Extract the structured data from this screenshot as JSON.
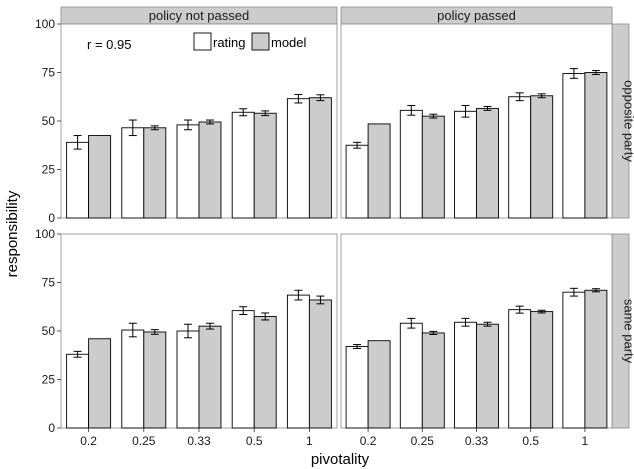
{
  "chart_data": {
    "type": "bar",
    "title": "",
    "xlabel": "pivotality",
    "ylabel": "responsibility",
    "ylim": [
      0,
      100
    ],
    "yticks": [
      "0",
      "25",
      "50",
      "75",
      "100"
    ],
    "categories": [
      "0.2",
      "0.25",
      "0.33",
      "0.5",
      "1"
    ],
    "column_facets": [
      "policy not passed",
      "policy passed"
    ],
    "row_facets": [
      "opposite party",
      "same party"
    ],
    "annotation": "r = 0.95",
    "legend": {
      "position": "top",
      "entries": [
        {
          "name": "rating",
          "color": "#ffffff"
        },
        {
          "name": "model",
          "color": "#cccccc"
        }
      ]
    },
    "grid": false,
    "panels": [
      {
        "column": "policy not passed",
        "row": "opposite party",
        "series": [
          {
            "name": "rating",
            "values": [
              39,
              46.5,
              48,
              54.5,
              61.5
            ],
            "error": [
              3.5,
              4,
              2.5,
              1.8,
              2.2
            ]
          },
          {
            "name": "model",
            "values": [
              42.5,
              46.5,
              49.5,
              54,
              62
            ],
            "error": [
              0,
              1,
              1,
              1.2,
              1.5
            ]
          }
        ]
      },
      {
        "column": "policy passed",
        "row": "opposite party",
        "series": [
          {
            "name": "rating",
            "values": [
              37.5,
              55.5,
              55,
              62.5,
              74.5
            ],
            "error": [
              1.5,
              2.5,
              3,
              2,
              2.5
            ]
          },
          {
            "name": "model",
            "values": [
              48.5,
              52.5,
              56.5,
              63,
              75
            ],
            "error": [
              0,
              1,
              1,
              1,
              1
            ]
          }
        ]
      },
      {
        "column": "policy not passed",
        "row": "same party",
        "series": [
          {
            "name": "rating",
            "values": [
              38,
              50.5,
              50,
              60.5,
              68.5
            ],
            "error": [
              1.5,
              3.5,
              3.5,
              2,
              2.5
            ]
          },
          {
            "name": "model",
            "values": [
              46,
              49.5,
              52.5,
              57.5,
              66
            ],
            "error": [
              0,
              1.2,
              1.5,
              1.8,
              2
            ]
          }
        ]
      },
      {
        "column": "policy passed",
        "row": "same party",
        "series": [
          {
            "name": "rating",
            "values": [
              42,
              54,
              54.5,
              61,
              70
            ],
            "error": [
              1,
              2.5,
              2,
              1.8,
              2
            ]
          },
          {
            "name": "model",
            "values": [
              45,
              49,
              53.5,
              60,
              71
            ],
            "error": [
              0,
              0.8,
              1,
              0.7,
              0.8
            ]
          }
        ]
      }
    ]
  }
}
